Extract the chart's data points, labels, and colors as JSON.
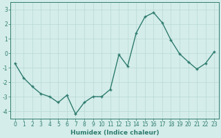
{
  "x": [
    0,
    1,
    2,
    3,
    4,
    5,
    6,
    7,
    8,
    9,
    10,
    11,
    12,
    13,
    14,
    15,
    16,
    17,
    18,
    19,
    20,
    21,
    22,
    23
  ],
  "y": [
    -0.7,
    -1.7,
    -2.3,
    -2.8,
    -3.0,
    -3.4,
    -2.9,
    -4.2,
    -3.4,
    -3.0,
    -3.0,
    -2.5,
    -0.1,
    -0.9,
    1.4,
    2.5,
    2.8,
    2.1,
    0.9,
    -0.05,
    -0.6,
    -1.1,
    -0.7,
    0.1
  ],
  "line_color": "#2e7b6e",
  "marker": "+",
  "marker_size": 3,
  "marker_lw": 1.0,
  "bg_color": "#d4edea",
  "grid_color": "#b8d8d4",
  "xlabel": "Humidex (Indice chaleur)",
  "ylim": [
    -4.5,
    3.5
  ],
  "xlim": [
    -0.5,
    23.5
  ],
  "yticks": [
    -4,
    -3,
    -2,
    -1,
    0,
    1,
    2,
    3
  ],
  "xticks": [
    0,
    1,
    2,
    3,
    4,
    5,
    6,
    7,
    8,
    9,
    10,
    11,
    12,
    13,
    14,
    15,
    16,
    17,
    18,
    19,
    20,
    21,
    22,
    23
  ],
  "tick_color": "#2e7b6e",
  "label_fontsize": 6.5,
  "tick_fontsize": 5.5,
  "line_width": 1.0
}
